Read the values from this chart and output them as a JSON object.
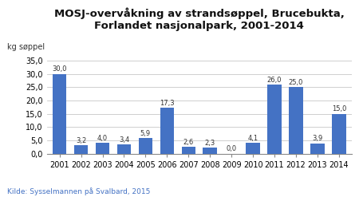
{
  "title": "MOSJ-overvåkning av strandsøppel, Brucebukta,\nForlandet nasjonalpark, 2001-2014",
  "ylabel": "kg søppel",
  "source": "Kilde: Sysselmannen på Svalbard, 2015",
  "years": [
    "2001",
    "2002",
    "2003",
    "2004",
    "2005",
    "2006",
    "2007",
    "2008",
    "2009",
    "2010",
    "2011",
    "2012",
    "2013",
    "2014"
  ],
  "values": [
    30.0,
    3.2,
    4.0,
    3.4,
    5.9,
    17.3,
    2.6,
    2.3,
    0.0,
    4.1,
    26.0,
    25.0,
    3.9,
    15.0
  ],
  "bar_color": "#4472C4",
  "background_color": "#ffffff",
  "ylim": [
    0,
    37
  ],
  "yticks": [
    0.0,
    5.0,
    10.0,
    15.0,
    20.0,
    25.0,
    30.0,
    35.0
  ],
  "title_fontsize": 9.5,
  "tick_fontsize": 7,
  "source_fontsize": 6.5,
  "bar_label_fontsize": 6,
  "ylabel_fontsize": 7
}
